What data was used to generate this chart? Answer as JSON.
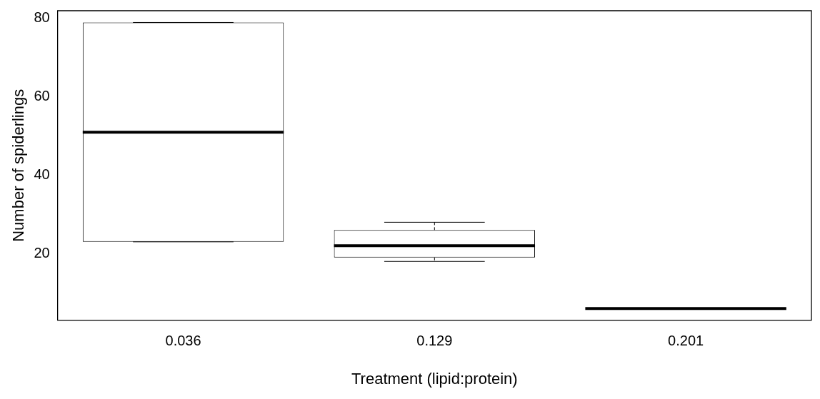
{
  "chart_data": {
    "type": "box",
    "xlabel": "Treatment (lipid:protein)",
    "ylabel": "Number of spiderlings",
    "categories": [
      "0.036",
      "0.129",
      "0.201"
    ],
    "boxes": [
      {
        "low": 23,
        "q1": 23,
        "median": 51,
        "q3": 79,
        "high": 79
      },
      {
        "low": 18,
        "q1": 19,
        "median": 22,
        "q3": 26,
        "high": 28
      },
      {
        "low": 6,
        "q1": 6,
        "median": 6,
        "q3": 6,
        "high": 6
      }
    ],
    "ylim": [
      3,
      82
    ],
    "yticks": [
      20,
      40,
      60,
      80
    ]
  }
}
